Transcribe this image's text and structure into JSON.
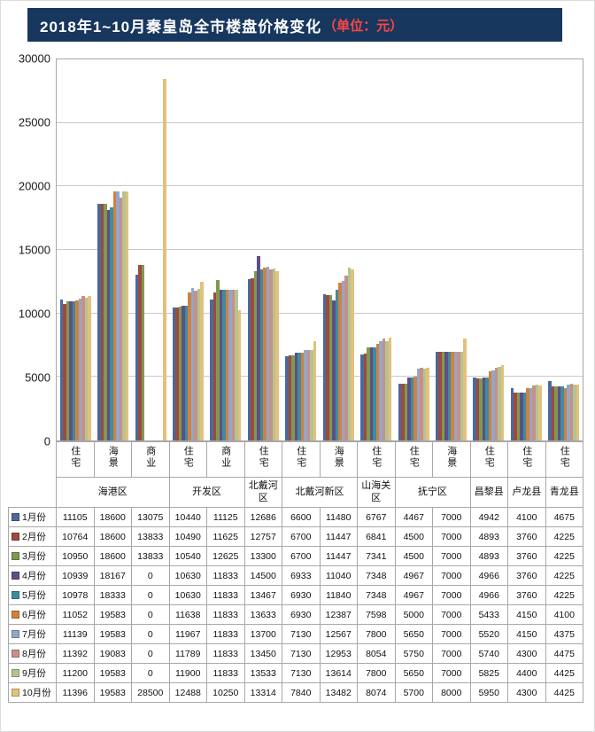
{
  "title": {
    "main": "2018年1~10月秦皇岛全市楼盘价格变化",
    "unit": "（单位：元）",
    "bar_color": "#17375e",
    "unit_color": "#ff4545"
  },
  "chart_data": {
    "type": "bar",
    "title": "2018年1~10月秦皇岛全市楼盘价格变化（单位：元）",
    "ylabel": "",
    "xlabel": "",
    "ylim": [
      0,
      30000
    ],
    "yticks": [
      0,
      5000,
      10000,
      15000,
      20000,
      25000,
      30000
    ],
    "grid": true,
    "legend_position": "data-table-left",
    "category_types": [
      "住宅",
      "海景",
      "商业",
      "住宅",
      "商业",
      "住宅",
      "住宅",
      "海景",
      "住宅",
      "住宅",
      "海景",
      "住宅",
      "住宅",
      "住宅"
    ],
    "district_groups": [
      {
        "name": "海港区",
        "span": 3
      },
      {
        "name": "开发区",
        "span": 2
      },
      {
        "name": "北戴河区",
        "span": 1
      },
      {
        "name": "北戴河新区",
        "span": 2
      },
      {
        "name": "山海关区",
        "span": 1
      },
      {
        "name": "抚宁区",
        "span": 2
      },
      {
        "name": "昌黎县",
        "span": 1
      },
      {
        "name": "卢龙县",
        "span": 1
      },
      {
        "name": "青龙县",
        "span": 1
      }
    ],
    "series": [
      {
        "name": "1月份",
        "color": "#4b699c",
        "values": [
          11105,
          18600,
          13075,
          10440,
          11125,
          12686,
          6600,
          11480,
          6767,
          4467,
          7000,
          4942,
          4100,
          4675
        ]
      },
      {
        "name": "2月份",
        "color": "#9e4a3d",
        "values": [
          10764,
          18600,
          13833,
          10490,
          11625,
          12757,
          6700,
          11447,
          6841,
          4500,
          7000,
          4893,
          3760,
          4225
        ]
      },
      {
        "name": "3月份",
        "color": "#7e9a50",
        "values": [
          10950,
          18600,
          13833,
          10540,
          12625,
          13300,
          6700,
          11447,
          7341,
          4500,
          7000,
          4893,
          3760,
          4225
        ]
      },
      {
        "name": "4月份",
        "color": "#5d5086",
        "values": [
          10939,
          18167,
          0,
          10630,
          11833,
          14500,
          6933,
          11040,
          7348,
          4967,
          7000,
          4966,
          3760,
          4225
        ]
      },
      {
        "name": "5月份",
        "color": "#3f8ba0",
        "values": [
          10978,
          18333,
          0,
          10630,
          11833,
          13467,
          6930,
          11840,
          7348,
          4967,
          7000,
          4966,
          3760,
          4225
        ]
      },
      {
        "name": "6月份",
        "color": "#d1813c",
        "values": [
          11052,
          19583,
          0,
          11638,
          11833,
          13633,
          6930,
          12387,
          7598,
          5000,
          7000,
          5433,
          4150,
          4100
        ]
      },
      {
        "name": "7月份",
        "color": "#92a7cc",
        "values": [
          11139,
          19583,
          0,
          11967,
          11833,
          13700,
          7130,
          12567,
          7800,
          5650,
          7000,
          5520,
          4150,
          4375
        ]
      },
      {
        "name": "8月份",
        "color": "#c98f87",
        "values": [
          11392,
          19083,
          0,
          11789,
          11833,
          13450,
          7130,
          12953,
          8054,
          5750,
          7000,
          5740,
          4300,
          4475
        ]
      },
      {
        "name": "9月份",
        "color": "#b3c492",
        "values": [
          11200,
          19583,
          0,
          11900,
          11833,
          13533,
          7130,
          13614,
          7800,
          5650,
          7000,
          5825,
          4400,
          4425
        ]
      },
      {
        "name": "10月份",
        "color": "#e3c17c",
        "values": [
          11396,
          19583,
          28500,
          12488,
          10250,
          13314,
          7840,
          13482,
          8074,
          5700,
          8000,
          5950,
          4300,
          4425
        ]
      }
    ]
  }
}
